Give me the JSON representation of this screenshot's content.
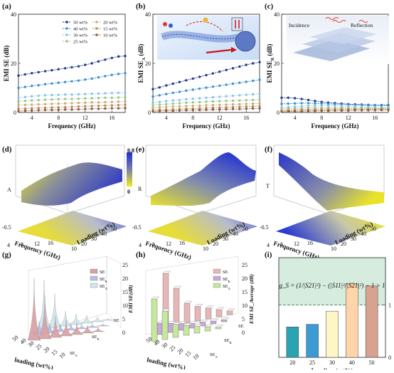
{
  "colors": {
    "s50": "#1f3a8a",
    "s40": "#3b8fd4",
    "s30": "#87c5ea",
    "s25": "#9bc48a",
    "s20": "#c9ab78",
    "s15": "#b98a55",
    "s10": "#8b5a3a",
    "cmap_high": "#1d2fd6",
    "cmap_low": "#f2ea1b",
    "panel_i_bg": "#d5ecdf"
  },
  "chart_data": [
    {
      "panel": "(a)",
      "type": "line",
      "ylabel": "EMI SE (dB)",
      "xlabel": "Frequency (GHz)",
      "xlim": [
        2,
        18
      ],
      "ylim": [
        0,
        40
      ],
      "xticks": [
        "4",
        "8",
        "12",
        "16"
      ],
      "yticks": [
        "0",
        "20",
        "40"
      ],
      "x": [
        2,
        3,
        4,
        5,
        6,
        7,
        8,
        9,
        10,
        11,
        12,
        13,
        14,
        15,
        16,
        17,
        18
      ],
      "legend_left": [
        "50 wt%",
        "40 wt%",
        "30 wt%",
        "25 wt%"
      ],
      "legend_right": [
        "20 wt%",
        "15 wt%",
        "10 wt%"
      ],
      "series": [
        {
          "name": "50 wt%",
          "values": [
            15,
            15.5,
            16,
            16.4,
            16.8,
            17.2,
            17.6,
            18,
            18.4,
            18.8,
            19.4,
            20,
            20.8,
            21.5,
            22.2,
            22.8,
            23
          ]
        },
        {
          "name": "40 wt%",
          "values": [
            10,
            10.4,
            10.8,
            11.1,
            11.5,
            11.8,
            12.1,
            12.4,
            12.7,
            13,
            13.4,
            13.8,
            14.3,
            14.8,
            15.3,
            15.7,
            16
          ]
        },
        {
          "name": "30 wt%",
          "values": [
            6,
            6.3,
            6.6,
            6.8,
            7,
            7.1,
            7.2,
            7.3,
            7.3,
            7.4,
            7.5,
            7.6,
            7.7,
            7.8,
            7.9,
            8,
            8
          ]
        },
        {
          "name": "25 wt%",
          "values": [
            4.5,
            4.7,
            4.9,
            5,
            5.2,
            5.3,
            5.4,
            5.5,
            5.5,
            5.6,
            5.7,
            5.8,
            5.9,
            6,
            6,
            6.1,
            6.2
          ]
        },
        {
          "name": "20 wt%",
          "values": [
            3,
            3.1,
            3.2,
            3.3,
            3.4,
            3.5,
            3.6,
            3.7,
            3.8,
            3.9,
            4,
            4.1,
            4.1,
            4.2,
            4.3,
            4.4,
            4.5
          ]
        },
        {
          "name": "15 wt%",
          "values": [
            1.5,
            1.6,
            1.7,
            1.8,
            1.9,
            2,
            2.1,
            2.2,
            2.3,
            2.4,
            2.5,
            2.6,
            2.7,
            2.8,
            2.9,
            3,
            3.1
          ]
        },
        {
          "name": "10 wt%",
          "values": [
            0.6,
            0.7,
            0.8,
            0.9,
            1,
            1,
            1.1,
            1.2,
            1.2,
            1.3,
            1.4,
            1.5,
            1.5,
            1.6,
            1.7,
            1.7,
            1.8
          ]
        }
      ]
    },
    {
      "panel": "(b)",
      "type": "line",
      "ylabel": "EMI SE",
      "ylabel_sub": "A",
      "ylabel_unit": "(dB)",
      "xlabel": "Frequency (GHz)",
      "xlim": [
        2,
        18
      ],
      "ylim": [
        0,
        40
      ],
      "xticks": [
        "4",
        "8",
        "12",
        "16"
      ],
      "yticks": [
        "0",
        "20",
        "40"
      ],
      "x": [
        2,
        3,
        4,
        5,
        6,
        7,
        8,
        9,
        10,
        11,
        12,
        13,
        14,
        15,
        16,
        17,
        18
      ],
      "series": [
        {
          "name": "50 wt%",
          "values": [
            9.5,
            10.2,
            11,
            11.7,
            12.4,
            13.1,
            13.8,
            14.5,
            15.2,
            15.9,
            16.6,
            17.3,
            18,
            18.7,
            19.4,
            20,
            20.5
          ]
        },
        {
          "name": "40 wt%",
          "values": [
            6.5,
            7,
            7.5,
            8,
            8.4,
            8.9,
            9.3,
            9.7,
            10.1,
            10.5,
            10.9,
            11.3,
            11.7,
            12.1,
            12.5,
            12.9,
            13.3
          ]
        },
        {
          "name": "30 wt%",
          "values": [
            4,
            4.3,
            4.6,
            4.9,
            5.1,
            5.4,
            5.6,
            5.8,
            6,
            6.2,
            6.4,
            6.6,
            6.8,
            7,
            7.2,
            7.4,
            7.6
          ]
        },
        {
          "name": "25 wt%",
          "values": [
            3,
            3.2,
            3.4,
            3.6,
            3.8,
            4,
            4.1,
            4.2,
            4.4,
            4.5,
            4.6,
            4.7,
            4.8,
            4.9,
            5,
            5.1,
            5.2
          ]
        },
        {
          "name": "20 wt%",
          "values": [
            2,
            2.1,
            2.3,
            2.4,
            2.5,
            2.6,
            2.7,
            2.8,
            2.9,
            3,
            3.1,
            3.2,
            3.3,
            3.4,
            3.5,
            3.6,
            3.7
          ]
        },
        {
          "name": "15 wt%",
          "values": [
            1,
            1.1,
            1.2,
            1.3,
            1.4,
            1.5,
            1.6,
            1.7,
            1.8,
            1.9,
            2,
            2.1,
            2.2,
            2.3,
            2.4,
            2.5,
            2.6
          ]
        },
        {
          "name": "10 wt%",
          "values": [
            0.5,
            0.6,
            0.7,
            0.7,
            0.8,
            0.9,
            1,
            1,
            1.1,
            1.2,
            1.2,
            1.3,
            1.4,
            1.4,
            1.5,
            1.6,
            1.7
          ]
        }
      ]
    },
    {
      "panel": "(c)",
      "type": "line",
      "ylabel": "EMI SE",
      "ylabel_sub": "R",
      "ylabel_unit": "(dB)",
      "xlabel": "Frequency (GHz)",
      "xlim": [
        2,
        18
      ],
      "ylim": [
        0,
        40
      ],
      "xticks": [
        "4",
        "8",
        "12",
        "16"
      ],
      "yticks": [
        "0",
        "20",
        "40"
      ],
      "inset_labels": [
        "Incidence",
        "Reflection"
      ],
      "x": [
        2,
        3,
        4,
        5,
        6,
        7,
        8,
        9,
        10,
        11,
        12,
        13,
        14,
        15,
        16,
        17,
        18
      ],
      "series": [
        {
          "name": "50 wt%",
          "values": [
            6,
            6,
            5.8,
            5.5,
            5.1,
            4.7,
            4.3,
            4,
            3.8,
            3.6,
            3.4,
            3.3,
            3.2,
            3.1,
            3,
            3,
            3
          ]
        },
        {
          "name": "40 wt%",
          "values": [
            3.5,
            3.6,
            3.7,
            3.8,
            3.8,
            3.7,
            3.6,
            3.5,
            3.4,
            3.3,
            3.2,
            3.1,
            3,
            2.9,
            2.9,
            2.8,
            2.8
          ]
        },
        {
          "name": "30 wt%",
          "values": [
            2,
            2.2,
            2.4,
            2.6,
            2.7,
            2.8,
            2.8,
            2.8,
            2.7,
            2.6,
            2.5,
            2.4,
            2.3,
            2.2,
            2.1,
            2,
            2
          ]
        },
        {
          "name": "25 wt%",
          "values": [
            1.5,
            1.6,
            1.7,
            1.8,
            1.9,
            1.9,
            1.9,
            1.9,
            1.9,
            1.9,
            1.9,
            1.8,
            1.8,
            1.8,
            1.7,
            1.7,
            1.7
          ]
        },
        {
          "name": "20 wt%",
          "values": [
            1,
            1.1,
            1.2,
            1.3,
            1.4,
            1.4,
            1.5,
            1.5,
            1.5,
            1.5,
            1.5,
            1.5,
            1.5,
            1.5,
            1.5,
            1.5,
            1.5
          ]
        },
        {
          "name": "15 wt%",
          "values": [
            0.6,
            0.7,
            0.8,
            0.9,
            1,
            1,
            1.1,
            1.1,
            1.2,
            1.2,
            1.2,
            1.3,
            1.3,
            1.3,
            1.3,
            1.4,
            1.4
          ]
        },
        {
          "name": "10 wt%",
          "values": [
            0.3,
            0.4,
            0.5,
            0.5,
            0.6,
            0.6,
            0.7,
            0.7,
            0.8,
            0.8,
            0.8,
            0.9,
            0.9,
            0.9,
            1,
            1,
            1
          ]
        }
      ]
    },
    {
      "panel": "(d)",
      "type": "heatmap",
      "zlabel": "A",
      "xlabel": "Frequency (GHz)",
      "ylabel": "Loading (wt%)",
      "zticks": [
        "-0.5",
        "0"
      ],
      "xticks": [
        "4",
        "8",
        "12",
        "16"
      ],
      "yticks": [
        "10",
        "20",
        "30",
        "40",
        "50"
      ],
      "colorbar_ticks": [
        "0.8",
        "0"
      ],
      "colorbar_range": [
        0,
        0.8
      ]
    },
    {
      "panel": "(e)",
      "type": "heatmap",
      "zlabel": "R",
      "xlabel": "Frequency (GHz)",
      "ylabel": "Loading (wt%)",
      "zticks": [
        "-0.5",
        "0"
      ],
      "xticks": [
        "4",
        "8",
        "12",
        "16"
      ],
      "yticks": [
        "10",
        "20",
        "30",
        "40",
        "50"
      ]
    },
    {
      "panel": "(f)",
      "type": "heatmap",
      "zlabel": "T",
      "xlabel": "Frequency (GHz)",
      "ylabel": "Loading (wt%)",
      "zticks": [
        "-0.5",
        "0"
      ],
      "xticks": [
        "4",
        "8",
        "12",
        "16"
      ],
      "yticks": [
        "10",
        "20",
        "30",
        "40",
        "50"
      ]
    },
    {
      "panel": "(g)",
      "type": "area",
      "zlabel": "EMI SE(dB)",
      "xlabel": "loading (wt%)",
      "categories": [
        "50",
        "40",
        "30",
        "25",
        "20",
        "15",
        "10"
      ],
      "zticks": [
        "0",
        "5",
        "10",
        "15",
        "20",
        "25"
      ],
      "legend": [
        "SE",
        "SE_R",
        "SE_A"
      ],
      "depth_labels": [
        "SE",
        "SE_R",
        "SE_A"
      ],
      "series": [
        {
          "name": "SE",
          "values": [
            23,
            16,
            8,
            6,
            4.5,
            3,
            1.5
          ]
        },
        {
          "name": "SE_R",
          "values": [
            5,
            3.5,
            2.5,
            2,
            1.5,
            1.2,
            0.8
          ]
        },
        {
          "name": "SE_A",
          "values": [
            18,
            12.5,
            5.5,
            4,
            3,
            1.8,
            0.7
          ]
        }
      ]
    },
    {
      "panel": "(h)",
      "type": "bar",
      "zlabel": "EMI SE_Average (dB)",
      "xlabel": "loading (wt%)",
      "categories": [
        "50",
        "40",
        "30",
        "25",
        "20",
        "15",
        "10"
      ],
      "zticks": [
        "0",
        "5",
        "10",
        "15",
        "20",
        "25"
      ],
      "legend": [
        "SE",
        "SE_R",
        "SE_A"
      ],
      "depth_labels": [
        "SE",
        "SE_R",
        "SE_A"
      ],
      "series": [
        {
          "name": "SE",
          "values": [
            19,
            13,
            7,
            5.2,
            3.8,
            2.5,
            1.3
          ]
        },
        {
          "name": "SE_R",
          "values": [
            4,
            3.2,
            2.4,
            1.7,
            1.4,
            1,
            0.7
          ]
        },
        {
          "name": "SE_A",
          "values": [
            15,
            10,
            4.6,
            3.5,
            2.4,
            1.5,
            0.6
          ]
        }
      ]
    },
    {
      "panel": "(i)",
      "type": "bar",
      "xlabel": "Loading (wt%)",
      "categories": [
        "20",
        "25",
        "30",
        "40",
        "50"
      ],
      "values": [
        0.58,
        0.63,
        0.88,
        1.4,
        1.36
      ],
      "ylim": [
        0,
        1.9
      ],
      "yticks": [
        "0",
        "1"
      ],
      "threshold": 1,
      "bar_colors": [
        "#2aa3b3",
        "#3d9bd4",
        "#fff6c6",
        "#ffd4a8",
        "#d8a290"
      ],
      "formula": "g_S = (1/|S21|²) − (|S11|²/|S21|²) − 1 > 1"
    }
  ],
  "labels": {
    "panel_a": "(a)",
    "panel_b": "(b)",
    "panel_c": "(c)",
    "panel_d": "(d)",
    "panel_e": "(e)",
    "panel_f": "(f)",
    "panel_g": "(g)",
    "panel_h": "(h)",
    "panel_i": "(i)"
  }
}
